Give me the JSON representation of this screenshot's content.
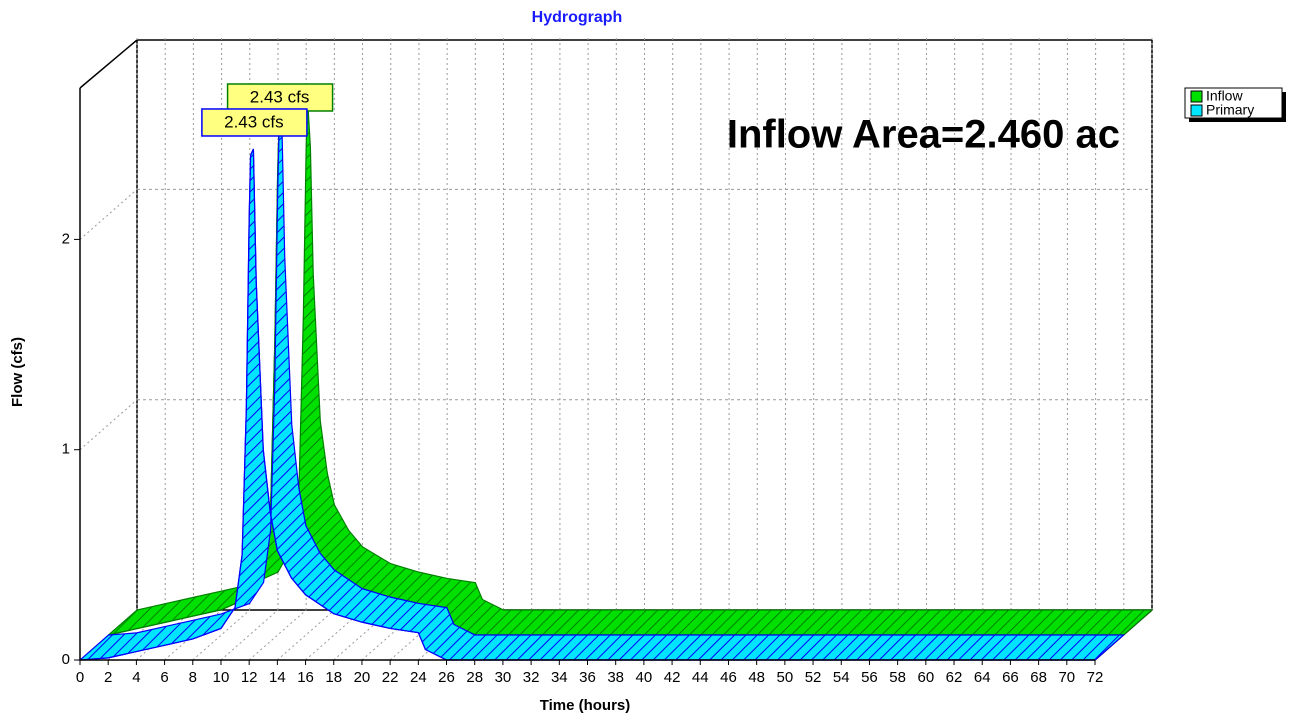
{
  "chart_data": {
    "type": "area3d",
    "title": "Hydrograph",
    "xlabel": "Time (hours)",
    "ylabel": "Flow (cfs)",
    "annotation": "Inflow Area=2.460 ac",
    "x": [
      0,
      2,
      4,
      6,
      8,
      10,
      11,
      11.5,
      11.8,
      12,
      12.1,
      12.3,
      12.5,
      13,
      13.5,
      14,
      15,
      16,
      18,
      20,
      22,
      24,
      24.5,
      26,
      72
    ],
    "series": [
      {
        "name": "Inflow",
        "color": "#00e000",
        "hatch": "#008000",
        "values": [
          0,
          0.03,
          0.06,
          0.09,
          0.12,
          0.18,
          0.3,
          0.6,
          1.4,
          2.2,
          2.43,
          2.2,
          1.6,
          0.9,
          0.65,
          0.5,
          0.38,
          0.3,
          0.22,
          0.18,
          0.15,
          0.13,
          0.05,
          0,
          0
        ],
        "value_labels": [
          null,
          null,
          null,
          null,
          null,
          null,
          null,
          null,
          null,
          null,
          "2.43 cfs",
          null,
          null,
          null,
          null,
          null,
          null,
          null,
          null,
          null,
          null,
          null,
          null,
          null,
          null
        ]
      },
      {
        "name": "Primary",
        "color": "#00e5ff",
        "hatch": "#0000ff",
        "values": [
          0,
          0.01,
          0.04,
          0.07,
          0.1,
          0.15,
          0.25,
          0.5,
          1.2,
          2.1,
          2.4,
          2.43,
          1.8,
          1.0,
          0.7,
          0.52,
          0.39,
          0.31,
          0.22,
          0.18,
          0.15,
          0.13,
          0.05,
          0,
          0
        ],
        "value_labels": [
          null,
          null,
          null,
          null,
          null,
          null,
          null,
          null,
          null,
          null,
          null,
          "2.43 cfs",
          null,
          null,
          null,
          null,
          null,
          null,
          null,
          null,
          null,
          null,
          null,
          null,
          null
        ]
      }
    ],
    "xlim": [
      0,
      72
    ],
    "xticks": [
      0,
      2,
      4,
      6,
      8,
      10,
      12,
      14,
      16,
      18,
      20,
      22,
      24,
      26,
      28,
      30,
      32,
      34,
      36,
      38,
      40,
      42,
      44,
      46,
      48,
      50,
      52,
      54,
      56,
      58,
      60,
      62,
      64,
      66,
      68,
      70,
      72
    ],
    "ylim": [
      0,
      2.72
    ],
    "yticks": [
      0,
      1,
      2
    ],
    "grid": true,
    "legend": "top-right"
  }
}
